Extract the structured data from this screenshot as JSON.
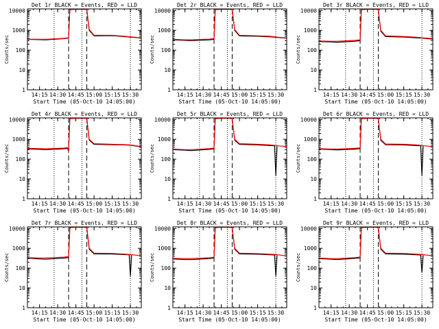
{
  "colors": {
    "events": "#000000",
    "lld": "#ff0000",
    "background": "#ffffff",
    "axis": "#000000"
  },
  "common": {
    "ylabel": "Counts/sec",
    "xlabel": "Start Time (05-Oct-10 14:05:00)",
    "x_ticks": [
      "14:15",
      "14:30",
      "14:45",
      "15:00",
      "15:15",
      "15:30"
    ],
    "y_ticks": [
      "1",
      "10",
      "100",
      "1000",
      "10000"
    ]
  },
  "chart_data": [
    {
      "type": "line",
      "title": "Det 1r BLACK = Events, RED = LLD",
      "xlabel": "Start Time (05-Oct-10 14:05:00)",
      "ylabel": "Counts/sec",
      "yscale": "log",
      "xlim": [
        "14:05",
        "15:39"
      ],
      "ylim": [
        1,
        12000
      ],
      "dotted_lines": [
        "14:27",
        "14:50",
        "15:30"
      ],
      "dashed_lines": [
        "14:39",
        "14:54"
      ],
      "series": [
        {
          "x": [
            "14:05",
            "14:20",
            "14:35",
            "14:39",
            "14:40",
            "14:44",
            "14:52",
            "14:54",
            "14:56",
            "15:00",
            "15:15",
            "15:25",
            "15:30",
            "15:39"
          ],
          "values": [
            350,
            330,
            380,
            400,
            11000,
            11500,
            11500,
            11000,
            1000,
            520,
            540,
            480,
            450,
            410
          ]
        },
        {
          "x": [
            "14:05",
            "14:20",
            "14:35",
            "14:39",
            "14:40",
            "14:44",
            "14:52",
            "14:54",
            "14:56",
            "15:00",
            "15:15",
            "15:25",
            "15:30",
            "15:39"
          ],
          "values": [
            360,
            350,
            390,
            420,
            11000,
            11500,
            11500,
            11000,
            1100,
            560,
            560,
            500,
            470,
            420
          ]
        }
      ]
    },
    {
      "type": "line",
      "title": "Det 2r BLACK = Events, RED = LLD",
      "xlabel": "Start Time (05-Oct-10 14:05:00)",
      "ylabel": "Counts/sec",
      "yscale": "log",
      "xlim": [
        "14:05",
        "15:39"
      ],
      "ylim": [
        1,
        12000
      ],
      "dotted_lines": [
        "14:27",
        "14:50",
        "15:30"
      ],
      "dashed_lines": [
        "14:39",
        "14:54"
      ],
      "series": [
        {
          "x": [
            "14:05",
            "14:15",
            "14:20",
            "14:35",
            "14:39",
            "14:40",
            "14:44",
            "14:52",
            "14:54",
            "14:56",
            "15:00",
            "15:15",
            "15:25",
            "15:30",
            "15:39"
          ],
          "values": [
            330,
            310,
            300,
            330,
            350,
            11000,
            11500,
            11500,
            11000,
            1000,
            520,
            500,
            470,
            440,
            400
          ]
        },
        {
          "x": [
            "14:05",
            "14:15",
            "14:20",
            "14:35",
            "14:39",
            "14:40",
            "14:44",
            "14:52",
            "14:54",
            "14:56",
            "15:00",
            "15:15",
            "15:25",
            "15:30",
            "15:39"
          ],
          "values": [
            350,
            330,
            330,
            360,
            380,
            11000,
            11500,
            11500,
            11000,
            1100,
            560,
            530,
            500,
            460,
            410
          ]
        }
      ]
    },
    {
      "type": "line",
      "title": "Det 3r BLACK = Events, RED = LLD",
      "xlabel": "Start Time (05-Oct-10 14:05:00)",
      "ylabel": "Counts/sec",
      "yscale": "log",
      "xlim": [
        "14:05",
        "15:39"
      ],
      "ylim": [
        1,
        12000
      ],
      "dotted_lines": [
        "14:27",
        "14:50",
        "15:30"
      ],
      "dashed_lines": [
        "14:39",
        "14:54"
      ],
      "series": [
        {
          "x": [
            "14:05",
            "14:15",
            "14:20",
            "14:35",
            "14:39",
            "14:40",
            "14:44",
            "14:52",
            "14:54",
            "14:56",
            "15:00",
            "15:15",
            "15:25",
            "15:30",
            "15:39"
          ],
          "values": [
            270,
            260,
            250,
            280,
            300,
            11000,
            11500,
            11500,
            11000,
            900,
            480,
            460,
            420,
            400,
            360
          ]
        },
        {
          "x": [
            "14:05",
            "14:15",
            "14:20",
            "14:35",
            "14:39",
            "14:40",
            "14:44",
            "14:52",
            "14:54",
            "14:56",
            "15:00",
            "15:15",
            "15:25",
            "15:30",
            "15:39"
          ],
          "values": [
            290,
            280,
            280,
            310,
            330,
            11000,
            11500,
            11500,
            11000,
            1000,
            520,
            490,
            450,
            420,
            380
          ]
        }
      ]
    },
    {
      "type": "line",
      "title": "Det 4r BLACK = Events, RED = LLD",
      "xlabel": "Start Time (05-Oct-10 14:05:00)",
      "ylabel": "Counts/sec",
      "yscale": "log",
      "xlim": [
        "14:05",
        "15:39"
      ],
      "ylim": [
        1,
        12000
      ],
      "dotted_lines": [
        "14:27",
        "14:50",
        "15:30"
      ],
      "dashed_lines": [
        "14:39",
        "14:54"
      ],
      "series": [
        {
          "x": [
            "14:05",
            "14:15",
            "14:20",
            "14:35",
            "14:38",
            "14:39",
            "14:40",
            "14:44",
            "14:52",
            "14:54",
            "14:56",
            "15:00",
            "15:15",
            "15:25",
            "15:30",
            "15:39"
          ],
          "values": [
            330,
            310,
            300,
            330,
            350,
            260,
            11000,
            11500,
            11500,
            11000,
            900,
            560,
            530,
            520,
            500,
            420
          ]
        },
        {
          "x": [
            "14:05",
            "14:15",
            "14:20",
            "14:35",
            "14:38",
            "14:39",
            "14:40",
            "14:44",
            "14:52",
            "14:54",
            "14:56",
            "15:00",
            "15:15",
            "15:25",
            "15:30",
            "15:39"
          ],
          "values": [
            350,
            340,
            330,
            360,
            380,
            300,
            11000,
            11500,
            11500,
            11000,
            1000,
            600,
            560,
            540,
            520,
            430
          ]
        }
      ]
    },
    {
      "type": "line",
      "title": "Det 5r BLACK = Events, RED = LLD",
      "xlabel": "Start Time (05-Oct-10 14:05:00)",
      "ylabel": "Counts/sec",
      "yscale": "log",
      "xlim": [
        "14:05",
        "15:39"
      ],
      "ylim": [
        1,
        12000
      ],
      "dotted_lines": [
        "14:27",
        "14:50",
        "15:30"
      ],
      "dashed_lines": [
        "14:39",
        "14:54"
      ],
      "series": [
        {
          "x": [
            "14:05",
            "14:15",
            "14:20",
            "14:35",
            "14:39",
            "14:40",
            "14:44",
            "14:52",
            "14:54",
            "14:56",
            "15:00",
            "15:15",
            "15:25",
            "15:29",
            "15:30",
            "15:31"
          ],
          "values": [
            300,
            280,
            270,
            310,
            330,
            11000,
            11500,
            11500,
            11000,
            900,
            550,
            520,
            480,
            470,
            15,
            450
          ]
        },
        {
          "x": [
            "14:05",
            "14:15",
            "14:20",
            "14:35",
            "14:39",
            "14:40",
            "14:44",
            "14:52",
            "14:54",
            "14:56",
            "15:00",
            "15:15",
            "15:25",
            "15:30",
            "15:39"
          ],
          "values": [
            320,
            300,
            300,
            340,
            360,
            11000,
            11500,
            11500,
            11000,
            1000,
            600,
            560,
            520,
            490,
            420
          ]
        }
      ]
    },
    {
      "type": "line",
      "title": "Det 6r BLACK = Events, RED = LLD",
      "xlabel": "Start Time (05-Oct-10 14:05:00)",
      "ylabel": "Counts/sec",
      "yscale": "log",
      "xlim": [
        "14:05",
        "15:39"
      ],
      "ylim": [
        1,
        12000
      ],
      "dotted_lines": [
        "14:27",
        "14:50",
        "15:30"
      ],
      "dashed_lines": [
        "14:39",
        "14:54"
      ],
      "series": [
        {
          "x": [
            "14:05",
            "14:15",
            "14:20",
            "14:35",
            "14:39",
            "14:40",
            "14:44",
            "14:52",
            "14:54",
            "14:56",
            "15:00",
            "15:15",
            "15:25",
            "15:29",
            "15:30",
            "15:31"
          ],
          "values": [
            320,
            300,
            290,
            320,
            340,
            11000,
            11500,
            11500,
            11000,
            900,
            530,
            520,
            480,
            470,
            15,
            450
          ]
        },
        {
          "x": [
            "14:05",
            "14:15",
            "14:20",
            "14:35",
            "14:39",
            "14:40",
            "14:44",
            "14:52",
            "14:54",
            "14:56",
            "15:00",
            "15:15",
            "15:25",
            "15:30",
            "15:39"
          ],
          "values": [
            340,
            320,
            320,
            350,
            370,
            11000,
            11500,
            11500,
            11000,
            1000,
            580,
            560,
            520,
            490,
            420
          ]
        }
      ]
    },
    {
      "type": "line",
      "title": "Det 7r BLACK = Events, RED = LLD",
      "xlabel": "Start Time (05-Oct-10 14:05:00)",
      "ylabel": "Counts/sec",
      "yscale": "log",
      "xlim": [
        "14:05",
        "15:39"
      ],
      "ylim": [
        1,
        12000
      ],
      "dotted_lines": [
        "14:27",
        "14:50",
        "15:30"
      ],
      "dashed_lines": [
        "14:39",
        "14:54"
      ],
      "series": [
        {
          "x": [
            "14:05",
            "14:15",
            "14:20",
            "14:35",
            "14:39",
            "14:40",
            "14:44",
            "14:52",
            "14:54",
            "14:56",
            "15:00",
            "15:15",
            "15:25",
            "15:29",
            "15:30",
            "15:31"
          ],
          "values": [
            320,
            290,
            280,
            320,
            340,
            11000,
            11500,
            11500,
            11000,
            900,
            520,
            510,
            480,
            470,
            40,
            450
          ]
        },
        {
          "x": [
            "14:05",
            "14:15",
            "14:20",
            "14:35",
            "14:39",
            "14:40",
            "14:44",
            "14:52",
            "14:54",
            "14:56",
            "15:00",
            "15:15",
            "15:25",
            "15:30",
            "15:39"
          ],
          "values": [
            340,
            320,
            320,
            360,
            380,
            11000,
            11500,
            11500,
            11000,
            1000,
            570,
            550,
            510,
            480,
            420
          ]
        }
      ]
    },
    {
      "type": "line",
      "title": "Det 8r BLACK = Events, RED = LLD",
      "xlabel": "Start Time (05-Oct-10 14:05:00)",
      "ylabel": "Counts/sec",
      "yscale": "log",
      "xlim": [
        "14:05",
        "15:39"
      ],
      "ylim": [
        1,
        12000
      ],
      "dotted_lines": [
        "14:27",
        "14:50",
        "15:30"
      ],
      "dashed_lines": [
        "14:39",
        "14:54"
      ],
      "series": [
        {
          "x": [
            "14:05",
            "14:15",
            "14:20",
            "14:35",
            "14:39",
            "14:40",
            "14:44",
            "14:52",
            "14:54",
            "14:56",
            "15:00",
            "15:15",
            "15:25",
            "15:29",
            "15:30",
            "15:31"
          ],
          "values": [
            290,
            270,
            270,
            300,
            320,
            11000,
            11500,
            11500,
            11000,
            900,
            520,
            500,
            470,
            460,
            40,
            440
          ]
        },
        {
          "x": [
            "14:05",
            "14:15",
            "14:20",
            "14:35",
            "14:39",
            "14:40",
            "14:44",
            "14:52",
            "14:54",
            "14:56",
            "15:00",
            "15:15",
            "15:25",
            "15:30",
            "15:39"
          ],
          "values": [
            310,
            300,
            300,
            330,
            350,
            11000,
            11500,
            11500,
            11000,
            1000,
            570,
            540,
            500,
            480,
            410
          ]
        }
      ]
    },
    {
      "type": "line",
      "title": "Det 9r BLACK = Events, RED = LLD",
      "xlabel": "Start Time (05-Oct-10 14:05:00)",
      "ylabel": "Counts/sec",
      "yscale": "log",
      "xlim": [
        "14:05",
        "15:39"
      ],
      "ylim": [
        1,
        12000
      ],
      "dotted_lines": [
        "14:27",
        "14:50",
        "15:30"
      ],
      "dashed_lines": [
        "14:39",
        "14:54"
      ],
      "series": [
        {
          "x": [
            "14:05",
            "14:15",
            "14:20",
            "14:35",
            "14:39",
            "14:40",
            "14:44",
            "14:52",
            "14:54",
            "14:56",
            "15:00",
            "15:15",
            "15:25",
            "15:29",
            "15:30",
            "15:31"
          ],
          "values": [
            300,
            280,
            270,
            310,
            330,
            11000,
            11500,
            11500,
            11000,
            900,
            520,
            500,
            470,
            460,
            60,
            440
          ]
        },
        {
          "x": [
            "14:05",
            "14:15",
            "14:20",
            "14:35",
            "14:39",
            "14:40",
            "14:44",
            "14:52",
            "14:54",
            "14:56",
            "15:00",
            "15:15",
            "15:25",
            "15:30",
            "15:39"
          ],
          "values": [
            320,
            300,
            300,
            340,
            360,
            11000,
            11500,
            11500,
            11000,
            1000,
            570,
            550,
            510,
            480,
            420
          ]
        }
      ]
    }
  ]
}
